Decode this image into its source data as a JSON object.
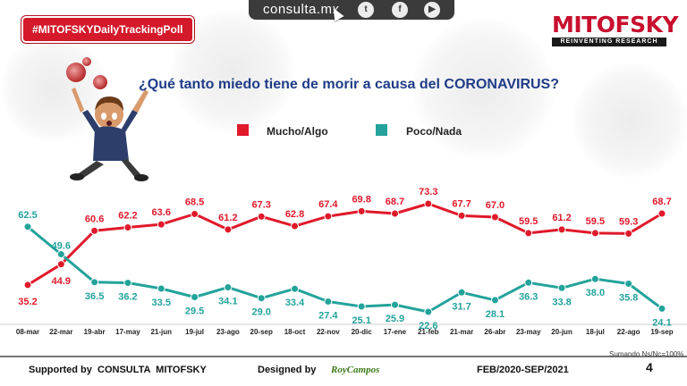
{
  "header": {
    "hashtag": "#MITOFSKYDailyTrackingPoll",
    "site": "consulta.mx",
    "social_icons": [
      "twitter-icon",
      "facebook-icon",
      "youtube-icon"
    ],
    "brand_name": "MITOFSKY",
    "brand_tagline": "REINVENTING RESEARCH",
    "question": "¿Qué tanto miedo tiene de morir a causa del CORONAVIRUS?"
  },
  "footer": {
    "supported_by": "Supported by  CONSULTA  MITOFSKY",
    "designed_by_prefix": "Designed by",
    "designed_by_name": "RoyCampos",
    "period": "FEB/2020-SEP/2021",
    "sumando": "Sumando Ns/Nc=100%",
    "page": "4"
  },
  "colors": {
    "red": "#e0192b",
    "teal": "#23a39b",
    "brand": "#c8102e",
    "question": "#1f3c88"
  },
  "chart_data": {
    "type": "line",
    "title": "¿Qué tanto miedo tiene de morir a causa del CORONAVIRUS?",
    "categories": [
      "08-mar",
      "22-mar",
      "19-abr",
      "17-may",
      "21-jun",
      "19-jul",
      "23-ago",
      "20-sep",
      "18-oct",
      "22-nov",
      "20-dic",
      "17-ene",
      "21-feb",
      "21-mar",
      "26-abr",
      "23-may",
      "20-jun",
      "18-jul",
      "22-ago",
      "19-sep"
    ],
    "series": [
      {
        "name": "Mucho/Algo",
        "color": "#e0192b",
        "values": [
          35.2,
          44.9,
          60.6,
          62.2,
          63.6,
          68.5,
          61.2,
          67.3,
          62.8,
          67.4,
          69.8,
          68.7,
          73.3,
          67.7,
          67.0,
          59.5,
          61.2,
          59.5,
          59.3,
          68.7
        ]
      },
      {
        "name": "Poco/Nada",
        "color": "#23a39b",
        "values": [
          62.5,
          49.6,
          36.5,
          36.2,
          33.5,
          29.5,
          34.1,
          29.0,
          33.4,
          27.4,
          25.1,
          25.9,
          22.6,
          31.7,
          28.1,
          36.3,
          33.8,
          38.0,
          35.8,
          24.1
        ]
      }
    ],
    "legend": "top",
    "grid": false
  }
}
